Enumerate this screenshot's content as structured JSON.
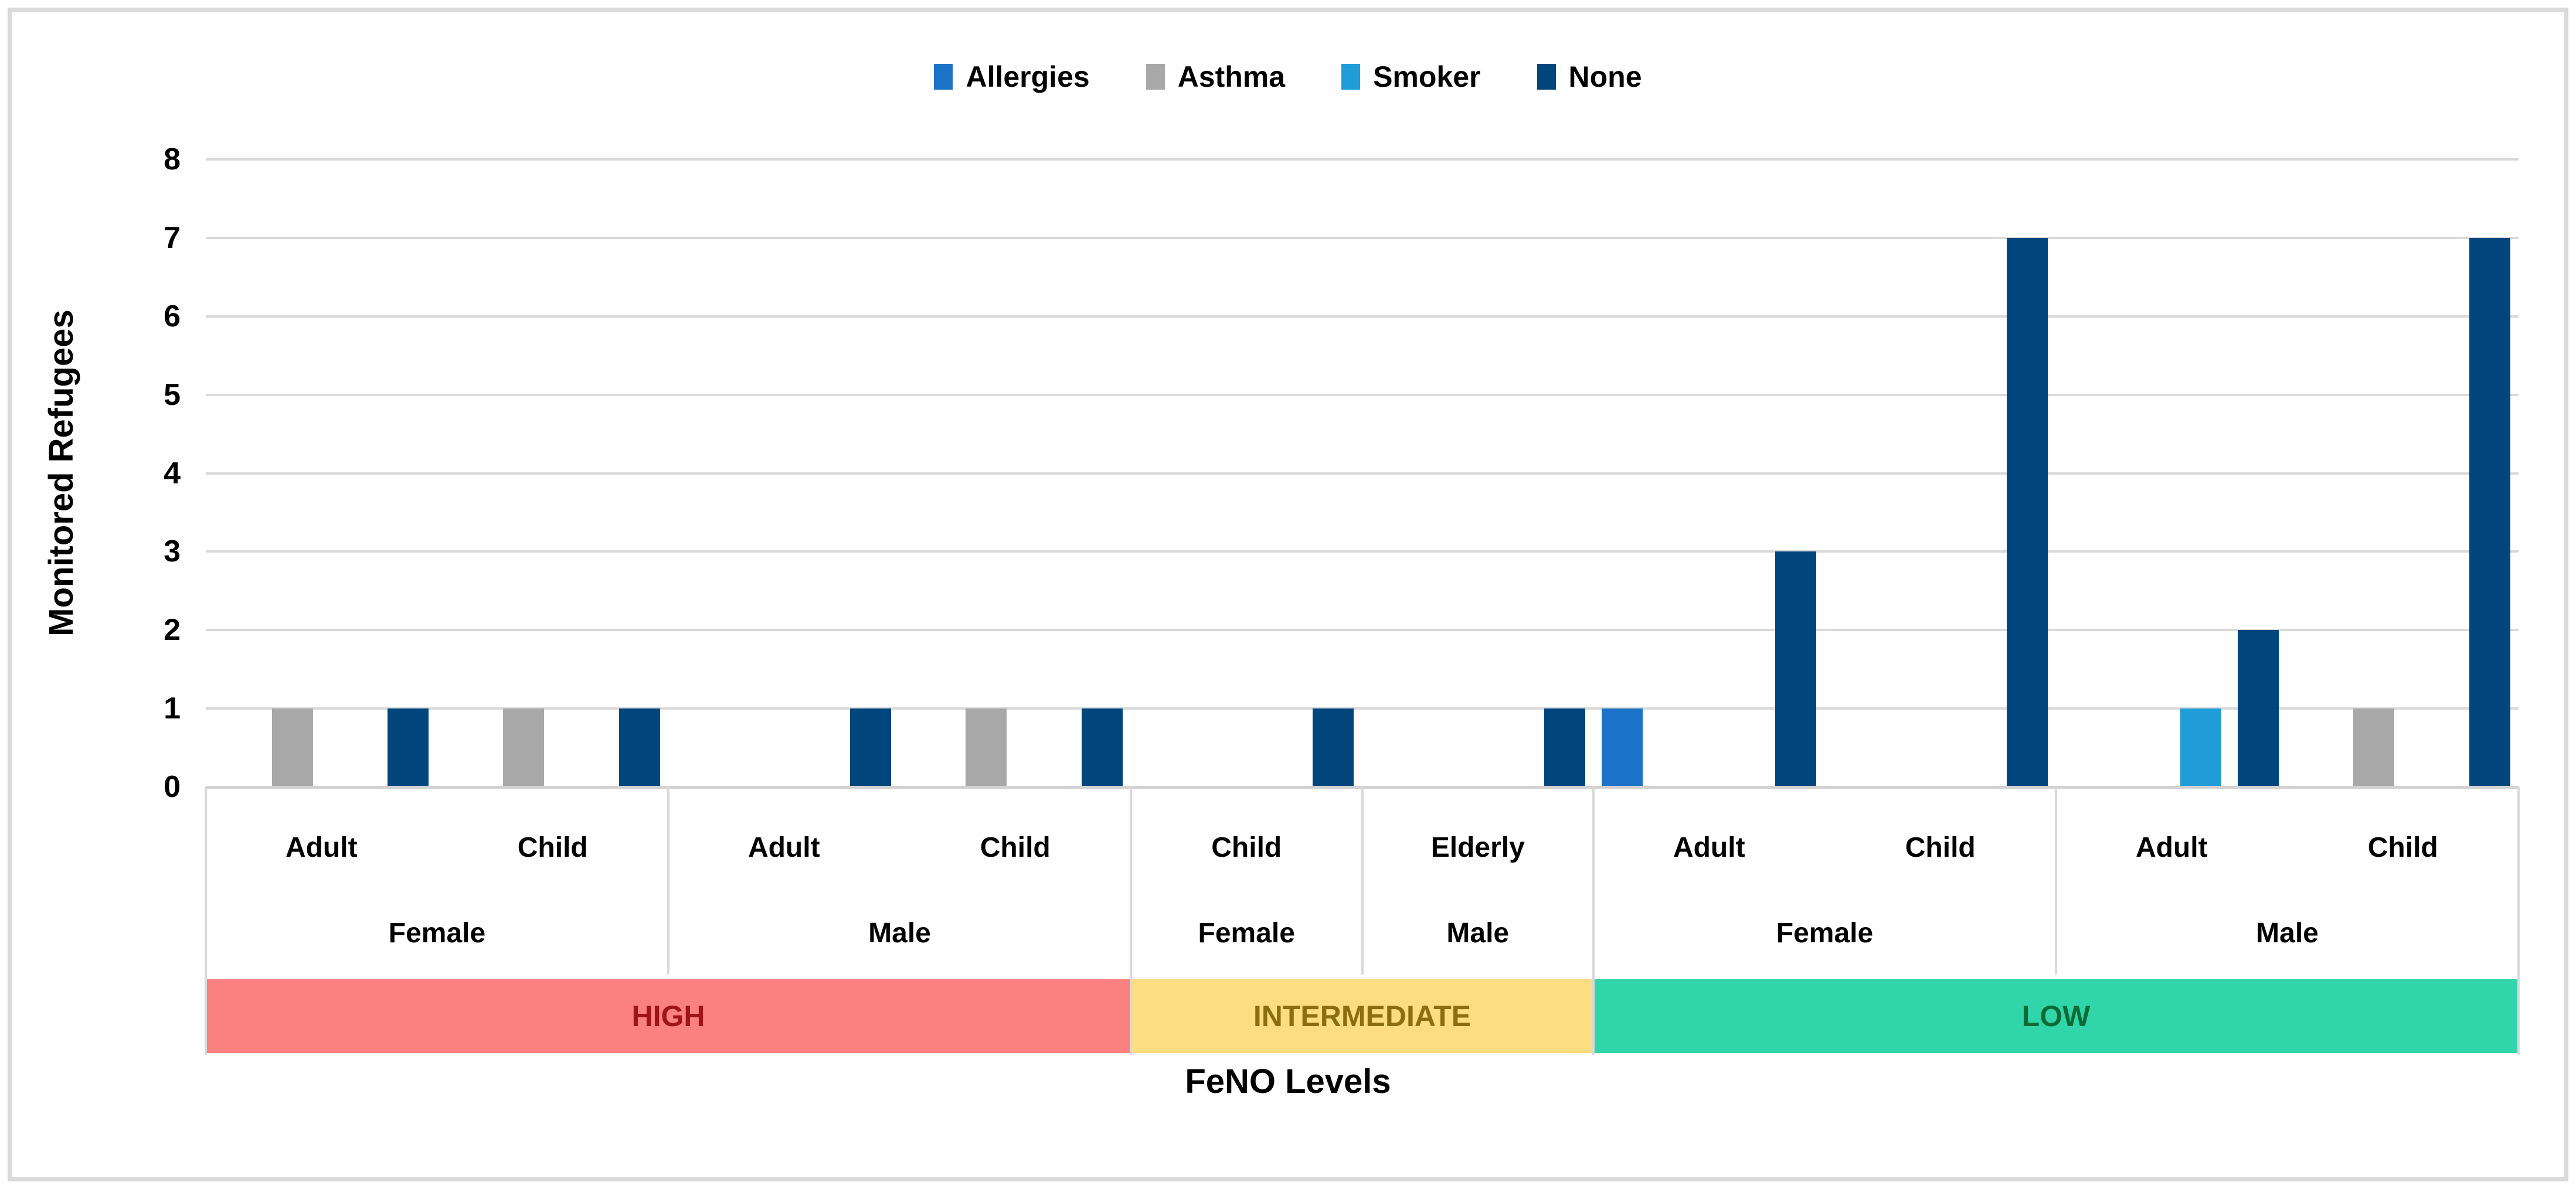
{
  "chart_data": {
    "type": "bar",
    "title": "",
    "ylabel": "Monitored Refugees",
    "xlabel": "FeNO Levels",
    "ylim": [
      0,
      8
    ],
    "yticks": [
      0,
      1,
      2,
      3,
      4,
      5,
      6,
      7,
      8
    ],
    "grid": true,
    "grid_color": "#d9d9d9",
    "legend_position": "top-center",
    "series": [
      {
        "name": "Allergies",
        "color": "#1B72C7"
      },
      {
        "name": "Asthma",
        "color": "#A8A8A8"
      },
      {
        "name": "Smoker",
        "color": "#209CD8"
      },
      {
        "name": "None",
        "color": "#00457C"
      }
    ],
    "levels": [
      {
        "label": "HIGH",
        "band_color": "#FB8080",
        "band_text_color": "#9E1418",
        "genders": [
          {
            "label": "Female",
            "ages": [
              {
                "label": "Adult",
                "values": [
                  0,
                  1,
                  0,
                  1
                ]
              },
              {
                "label": "Child",
                "values": [
                  0,
                  1,
                  0,
                  1
                ]
              }
            ]
          },
          {
            "label": "Male",
            "ages": [
              {
                "label": "Adult",
                "values": [
                  0,
                  0,
                  0,
                  1
                ]
              },
              {
                "label": "Child",
                "values": [
                  0,
                  1,
                  0,
                  1
                ]
              }
            ]
          }
        ]
      },
      {
        "label": "INTERMEDIATE",
        "band_color": "#FCDD82",
        "band_text_color": "#8B6E10",
        "genders": [
          {
            "label": "Female",
            "ages": [
              {
                "label": "Child",
                "values": [
                  0,
                  0,
                  0,
                  1
                ]
              }
            ]
          },
          {
            "label": "Male",
            "ages": [
              {
                "label": "Elderly",
                "values": [
                  0,
                  0,
                  0,
                  1
                ]
              }
            ]
          }
        ]
      },
      {
        "label": "LOW",
        "band_color": "#30D6A9",
        "band_text_color": "#0C6B35",
        "genders": [
          {
            "label": "Female",
            "ages": [
              {
                "label": "Adult",
                "values": [
                  1,
                  0,
                  0,
                  3
                ]
              },
              {
                "label": "Child",
                "values": [
                  0,
                  0,
                  0,
                  7
                ]
              }
            ]
          },
          {
            "label": "Male",
            "ages": [
              {
                "label": "Adult",
                "values": [
                  0,
                  0,
                  1,
                  2
                ]
              },
              {
                "label": "Child",
                "values": [
                  0,
                  1,
                  0,
                  7
                ]
              }
            ]
          }
        ]
      }
    ]
  }
}
